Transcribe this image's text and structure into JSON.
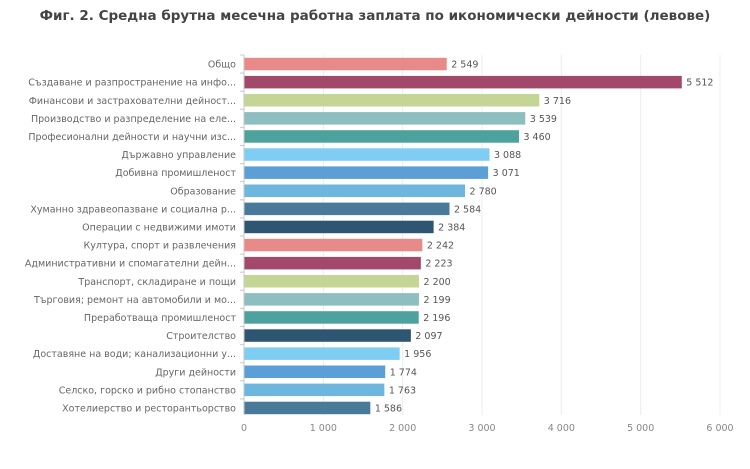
{
  "chart_data": {
    "type": "bar",
    "orientation": "horizontal",
    "title": "Фиг. 2. Средна брутна месечна работна заплата по икономически дейности (левове)",
    "xlabel": "",
    "ylabel": "",
    "xlim": [
      0,
      6000
    ],
    "xticks": [
      0,
      1000,
      2000,
      3000,
      4000,
      5000,
      6000
    ],
    "xtick_labels": [
      "0",
      "1 000",
      "2 000",
      "3 000",
      "4 000",
      "5 000",
      "6 000"
    ],
    "grid": true,
    "categories": [
      "Общо",
      "Създаване и разпространение на инфо...",
      "Финансови и застрахователни дейност...",
      "Производство и разпределение на еле...",
      "Професионални дейности и научни изс...",
      "Държавно управление",
      "Добивна промишленост",
      "Образование",
      "Хуманно здравеопазване и социална р...",
      "Операции с недвижими имоти",
      "Култура, спорт и развлечения",
      "Административни и спомагателни дейн...",
      "Транспорт, складиране и пощи",
      "Търговия; ремонт на автомобили и мо...",
      "Преработваща промишленост",
      "Строителство",
      "Доставяне на води; канализационни у...",
      "Други дейности",
      "Селско, горско и рибно стопанство",
      "Хотелиерство и ресторантьорство"
    ],
    "values": [
      2549,
      5512,
      3716,
      3539,
      3460,
      3088,
      3071,
      2780,
      2584,
      2384,
      2242,
      2223,
      2200,
      2199,
      2196,
      2097,
      1956,
      1774,
      1763,
      1586
    ],
    "value_labels": [
      "2 549",
      "5 512",
      "3 716",
      "3 539",
      "3 460",
      "3 088",
      "3 071",
      "2 780",
      "2 584",
      "2 384",
      "2 242",
      "2 223",
      "2 200",
      "2 199",
      "2 196",
      "2 097",
      "1 956",
      "1 774",
      "1 763",
      "1 586"
    ],
    "colors": [
      "#e8898a",
      "#a2486b",
      "#c4d596",
      "#8dbfc1",
      "#4da29d",
      "#80cdf3",
      "#5b9fd6",
      "#6db6de",
      "#4a7a9a",
      "#2e5672",
      "#e8898a",
      "#a2486b",
      "#c4d596",
      "#8dbfc1",
      "#4da29d",
      "#2e5672",
      "#80cdf3",
      "#5b9fd6",
      "#6db6de",
      "#4a7a9a"
    ]
  }
}
